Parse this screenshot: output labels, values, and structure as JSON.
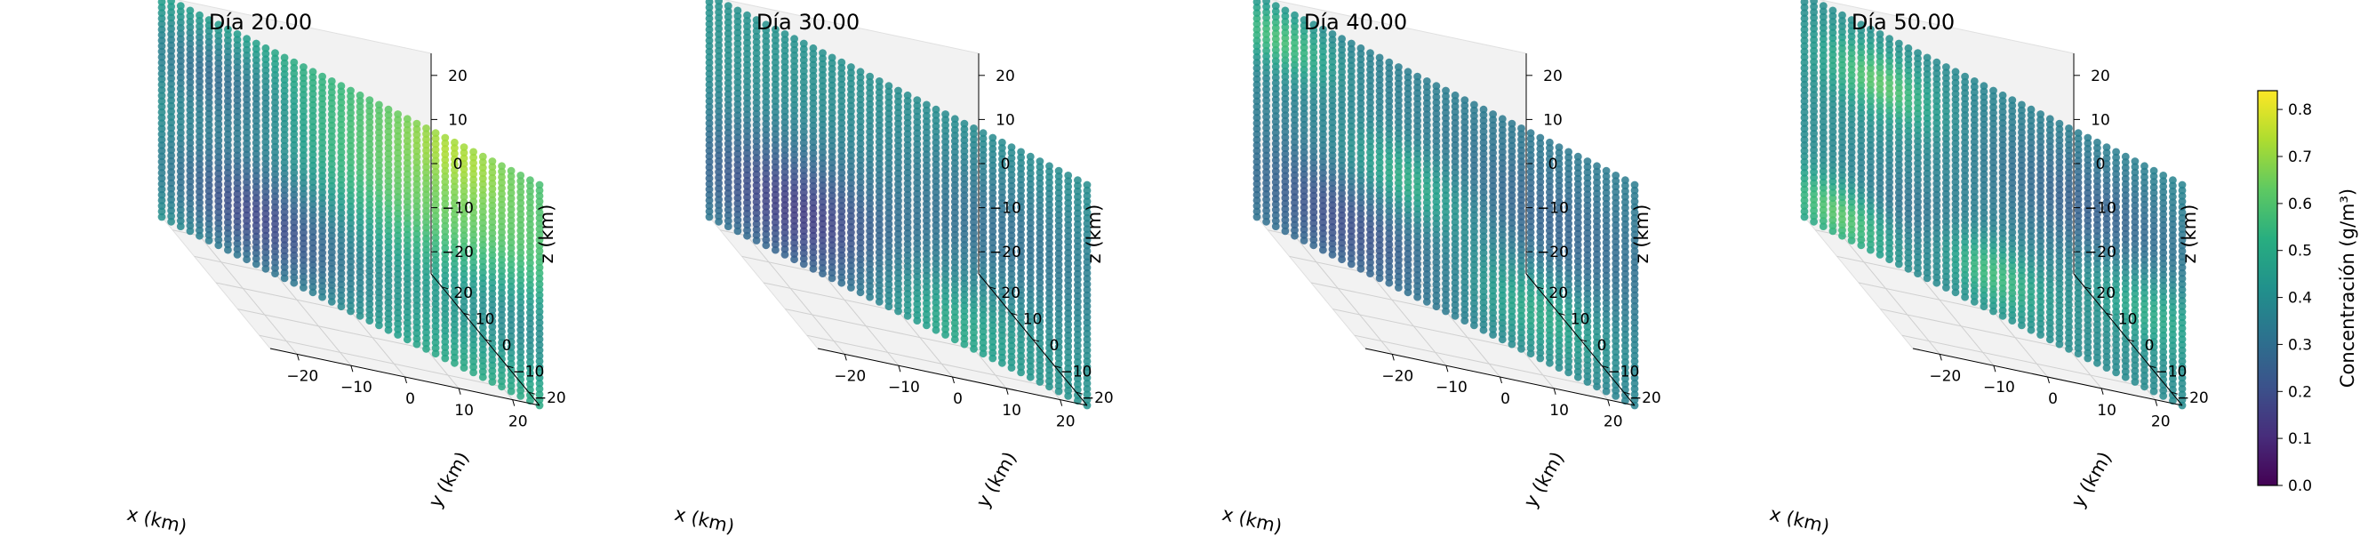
{
  "chart_data": [
    {
      "type": "scatter",
      "projection": "3d",
      "title": "Día 20.00",
      "xlabel": "x (km)",
      "ylabel": "y (km)",
      "zlabel": "z (km)",
      "xlim": [
        -25,
        25
      ],
      "ylim": [
        -25,
        25
      ],
      "zlim": [
        -25,
        25
      ],
      "xticks": [
        "−20",
        "−10",
        "0",
        "10",
        "20"
      ],
      "yticks": [
        "−20",
        "−10",
        "0",
        "10",
        "20"
      ],
      "zticks": [
        "−20",
        "−10",
        "0",
        "10",
        "20"
      ],
      "grid": true,
      "colormap": "viridis",
      "hotspots": [
        {
          "x": -12,
          "z": -14,
          "c": 0.18,
          "r": 11
        },
        {
          "x": -18,
          "z": 13,
          "c": 0.3,
          "r": 8
        },
        {
          "x": 12,
          "z": 10,
          "c": 0.65,
          "r": 13
        },
        {
          "x": 14,
          "z": 24,
          "c": 0.66,
          "r": 6
        },
        {
          "x": 21,
          "z": -8,
          "c": 0.36,
          "r": 8
        }
      ],
      "base_concentration": 0.52
    },
    {
      "type": "scatter",
      "projection": "3d",
      "title": "Día 30.00",
      "xlabel": "x (km)",
      "ylabel": "y (km)",
      "zlabel": "z (km)",
      "xlim": [
        -25,
        25
      ],
      "ylim": [
        -25,
        25
      ],
      "zlim": [
        -25,
        25
      ],
      "xticks": [
        "−20",
        "−10",
        "0",
        "10",
        "20"
      ],
      "yticks": [
        "−20",
        "−10",
        "0",
        "10",
        "20"
      ],
      "zticks": [
        "−20",
        "−10",
        "0",
        "10",
        "20"
      ],
      "grid": true,
      "colormap": "viridis",
      "hotspots": [
        {
          "x": -13,
          "z": -14,
          "c": 0.15,
          "r": 11
        },
        {
          "x": 13,
          "z": 5,
          "c": 0.3,
          "r": 11
        },
        {
          "x": -20,
          "z": 16,
          "c": 0.42,
          "r": 8
        },
        {
          "x": 5,
          "z": -20,
          "c": 0.55,
          "r": 7
        }
      ],
      "base_concentration": 0.42
    },
    {
      "type": "scatter",
      "projection": "3d",
      "title": "Día 40.00",
      "xlabel": "x (km)",
      "ylabel": "y (km)",
      "zlabel": "z (km)",
      "xlim": [
        -25,
        25
      ],
      "ylim": [
        -25,
        25
      ],
      "zlim": [
        -25,
        25
      ],
      "xticks": [
        "−20",
        "−10",
        "0",
        "10",
        "20"
      ],
      "yticks": [
        "−20",
        "−10",
        "0",
        "10",
        "20"
      ],
      "zticks": [
        "−20",
        "−10",
        "0",
        "10",
        "20"
      ],
      "grid": true,
      "colormap": "viridis",
      "hotspots": [
        {
          "x": -14,
          "z": -16,
          "c": 0.2,
          "r": 9
        },
        {
          "x": 13,
          "z": 6,
          "c": 0.26,
          "r": 11
        },
        {
          "x": -22,
          "z": 18,
          "c": 0.58,
          "r": 5
        },
        {
          "x": -5,
          "z": 0,
          "c": 0.55,
          "r": 6
        },
        {
          "x": 12,
          "z": -14,
          "c": 0.52,
          "r": 7
        }
      ],
      "base_concentration": 0.36
    },
    {
      "type": "scatter",
      "projection": "3d",
      "title": "Día 50.00",
      "xlabel": "x (km)",
      "ylabel": "y (km)",
      "zlabel": "z (km)",
      "xlim": [
        -25,
        25
      ],
      "ylim": [
        -25,
        25
      ],
      "zlim": [
        -25,
        25
      ],
      "xticks": [
        "−20",
        "−10",
        "0",
        "10",
        "20"
      ],
      "yticks": [
        "−20",
        "−10",
        "0",
        "10",
        "20"
      ],
      "zticks": [
        "−20",
        "−10",
        "0",
        "10",
        "20"
      ],
      "grid": true,
      "colormap": "viridis",
      "hotspots": [
        {
          "x": -10,
          "z": -14,
          "c": 0.28,
          "r": 7
        },
        {
          "x": -1,
          "z": -16,
          "c": 0.62,
          "r": 5
        },
        {
          "x": -20,
          "z": -20,
          "c": 0.64,
          "r": 5
        },
        {
          "x": -15,
          "z": 14,
          "c": 0.62,
          "r": 5
        },
        {
          "x": 13,
          "z": 8,
          "c": 0.25,
          "r": 11
        },
        {
          "x": 20,
          "z": -6,
          "c": 0.55,
          "r": 6
        }
      ],
      "base_concentration": 0.4
    }
  ],
  "colorbar": {
    "label": "Concentración (g/m³)",
    "ticks": [
      "0.0",
      "0.1",
      "0.2",
      "0.3",
      "0.4",
      "0.5",
      "0.6",
      "0.7",
      "0.8"
    ],
    "range": [
      0.0,
      0.84
    ],
    "colormap": "viridis"
  }
}
